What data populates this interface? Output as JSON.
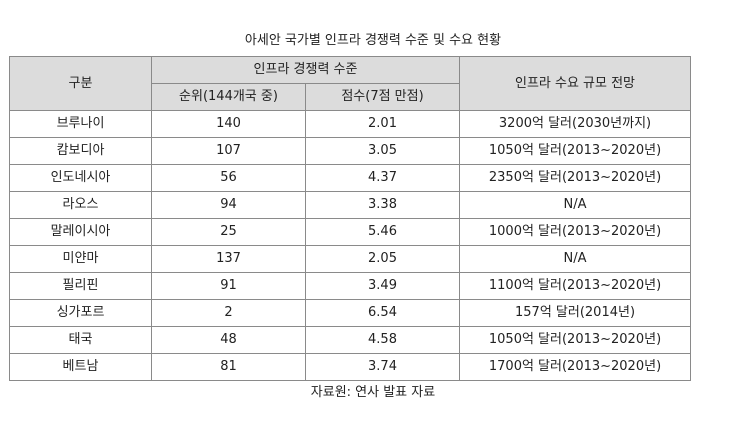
{
  "title": "아세안 국가별 인프라 경쟁력 수준 및 수요 현황",
  "table": {
    "headers": {
      "category": "구분",
      "competitiveness": "인프라 경쟁력 수준",
      "rank": "순위(144개국 중)",
      "score": "점수(7점 만점)",
      "demand": "인프라 수요 규모 전망"
    },
    "rows": [
      {
        "country": "브루나이",
        "rank": "140",
        "score": "2.01",
        "demand": "3200억 달러(2030년까지)"
      },
      {
        "country": "캄보디아",
        "rank": "107",
        "score": "3.05",
        "demand": "1050억 달러(2013~2020년)"
      },
      {
        "country": "인도네시아",
        "rank": "56",
        "score": "4.37",
        "demand": "2350억 달러(2013~2020년)"
      },
      {
        "country": "라오스",
        "rank": "94",
        "score": "3.38",
        "demand": "N/A"
      },
      {
        "country": "말레이시아",
        "rank": "25",
        "score": "5.46",
        "demand": "1000억 달러(2013~2020년)"
      },
      {
        "country": "미얀마",
        "rank": "137",
        "score": "2.05",
        "demand": "N/A"
      },
      {
        "country": "필리핀",
        "rank": "91",
        "score": "3.49",
        "demand": "1100억 달러(2013~2020년)"
      },
      {
        "country": "싱가포르",
        "rank": "2",
        "score": "6.54",
        "demand": "157억 달러(2014년)"
      },
      {
        "country": "태국",
        "rank": "48",
        "score": "4.58",
        "demand": "1050억 달러(2013~2020년)"
      },
      {
        "country": "베트남",
        "rank": "81",
        "score": "3.74",
        "demand": "1700억 달러(2013~2020년)"
      }
    ]
  },
  "source": "자료원: 연사 발표 자료"
}
